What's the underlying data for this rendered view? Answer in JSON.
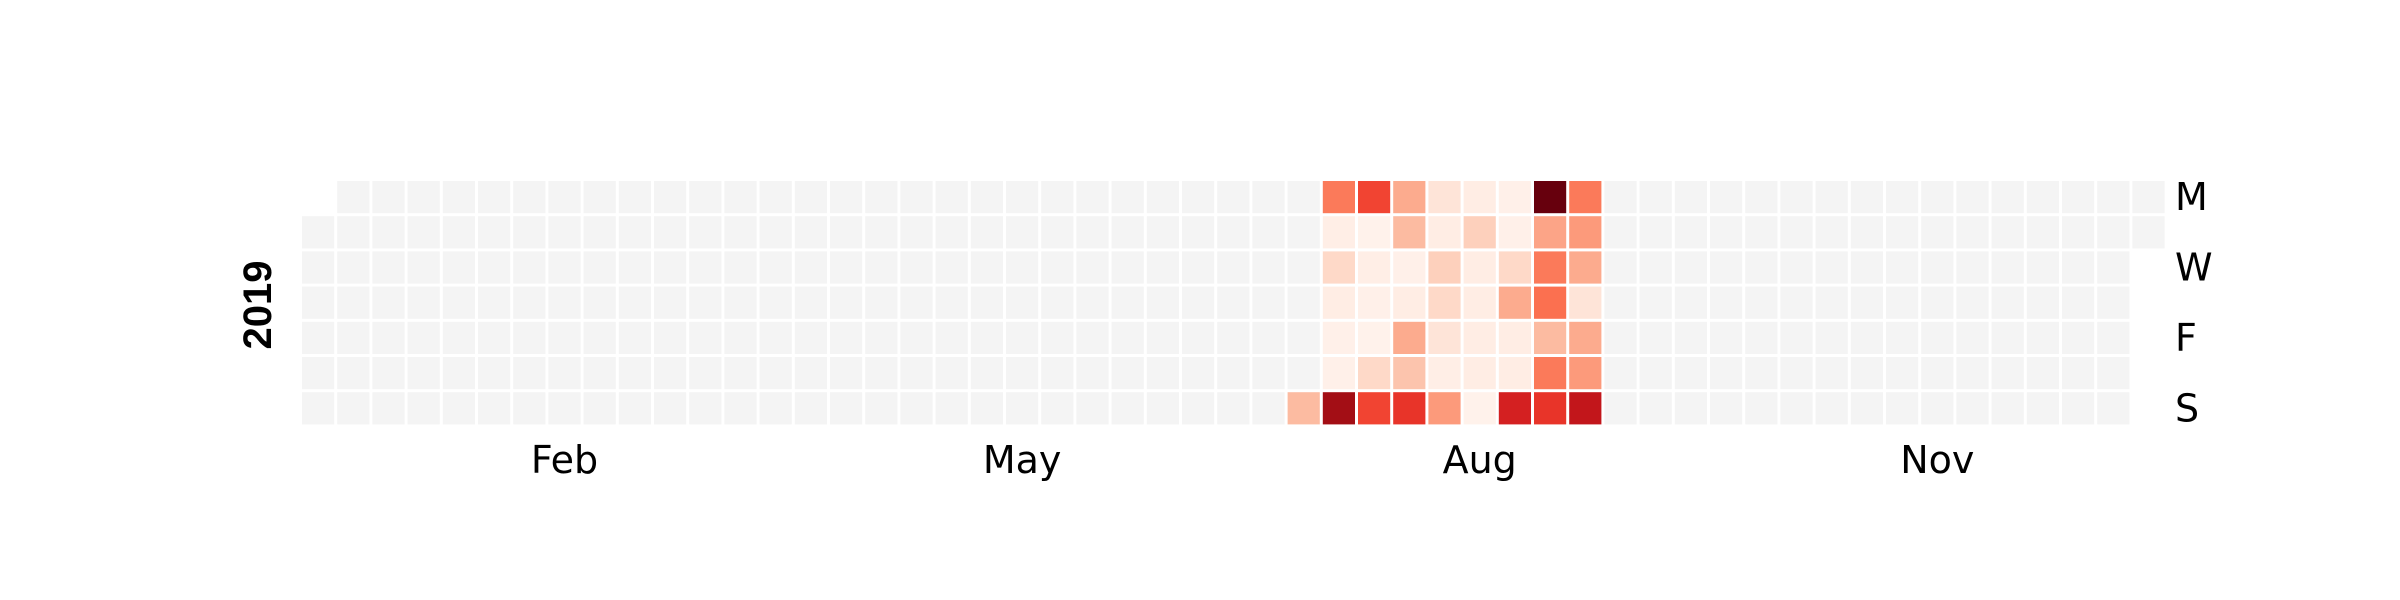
{
  "chart_data": {
    "type": "heatmap",
    "title": "",
    "year": "2019",
    "month_labels": [
      {
        "label": "Feb",
        "week": 7
      },
      {
        "label": "May",
        "week": 20
      },
      {
        "label": "Aug",
        "week": 33
      },
      {
        "label": "Nov",
        "week": 46
      }
    ],
    "weekday_labels": [
      {
        "label": "M",
        "day": 0
      },
      {
        "label": "W",
        "day": 2
      },
      {
        "label": "F",
        "day": 4
      },
      {
        "label": "S",
        "day": 6
      }
    ],
    "week_count": 53,
    "first_weekday": 1,
    "days_in_year": 365,
    "value_range": [
      0,
      1
    ],
    "colormap": [
      "#fff5f0",
      "#fee0d2",
      "#fcbba1",
      "#fc9272",
      "#fb6a4a",
      "#ef3b2c",
      "#cb181d",
      "#a50f15",
      "#67000d"
    ],
    "empty_color": "#f4f4f4",
    "activity": [
      {
        "week": 28,
        "values": [
          null,
          null,
          null,
          null,
          null,
          null,
          0.25
        ]
      },
      {
        "week": 29,
        "values": [
          0.45,
          0.04,
          0.15,
          0.05,
          0.03,
          0.03,
          0.88
        ]
      },
      {
        "week": 30,
        "values": [
          0.6,
          0.02,
          0.04,
          0.03,
          0.02,
          0.15,
          0.6
        ]
      },
      {
        "week": 31,
        "values": [
          0.3,
          0.25,
          0.03,
          0.05,
          0.3,
          0.22,
          0.65
        ]
      },
      {
        "week": 32,
        "values": [
          0.1,
          0.05,
          0.18,
          0.15,
          0.1,
          0.04,
          0.35
        ]
      },
      {
        "week": 33,
        "values": [
          0.05,
          0.18,
          0.05,
          0.05,
          0.05,
          0.05,
          0.02
        ]
      },
      {
        "week": 34,
        "values": [
          0.03,
          0.03,
          0.15,
          0.3,
          0.05,
          0.05,
          0.72
        ]
      },
      {
        "week": 35,
        "values": [
          1.0,
          0.32,
          0.45,
          0.48,
          0.25,
          0.45,
          0.65
        ]
      },
      {
        "week": 36,
        "values": [
          0.45,
          0.35,
          0.3,
          0.1,
          0.3,
          0.35,
          0.78
        ]
      }
    ]
  }
}
